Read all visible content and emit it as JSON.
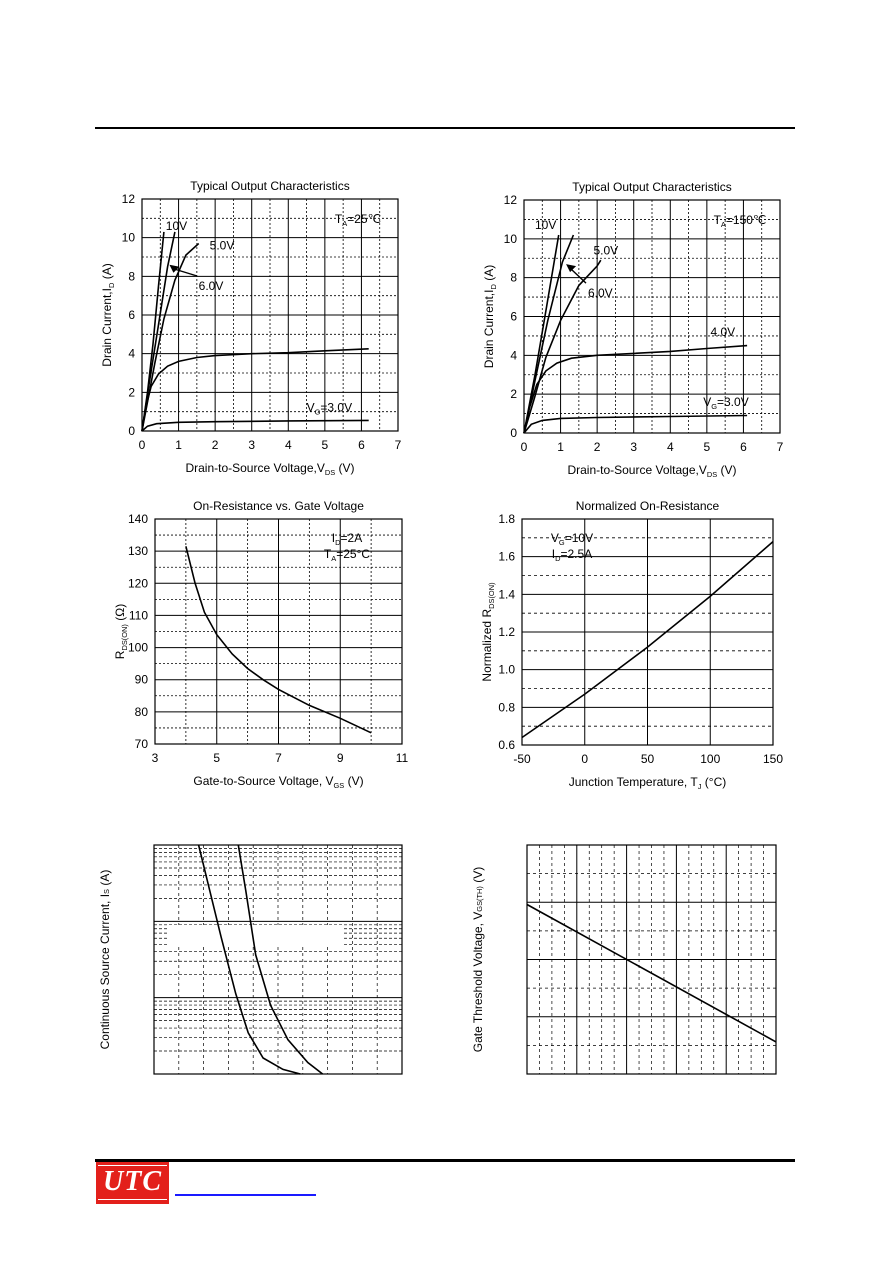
{
  "chart_data": [
    {
      "id": "c1",
      "type": "line",
      "title": "Typical Output Characteristics",
      "xlabel": "Drain-to-Source Voltage,V",
      "xlabel_sub": "DS",
      "xlabel_tail": " (V)",
      "ylabel": "Drain Current,I",
      "ylabel_sub": "D",
      "ylabel_tail": " (A)",
      "xlim": [
        0,
        7
      ],
      "ylim": [
        0,
        12
      ],
      "xticks": [
        "0",
        "1",
        "2",
        "3",
        "4",
        "5",
        "6",
        "7"
      ],
      "yticks": [
        "0",
        "2",
        "4",
        "6",
        "8",
        "10",
        "12"
      ],
      "condition": {
        "main": "T",
        "sub": "A",
        "tail": "=25℃"
      },
      "series": [
        {
          "name": "10V",
          "points": [
            [
              0,
              0
            ],
            [
              0.15,
              2
            ],
            [
              0.3,
              4.5
            ],
            [
              0.45,
              7.5
            ],
            [
              0.6,
              10.3
            ]
          ]
        },
        {
          "name": "6.0V",
          "points": [
            [
              0,
              0
            ],
            [
              0.2,
              2.5
            ],
            [
              0.45,
              5.5
            ],
            [
              0.7,
              8.5
            ],
            [
              0.9,
              10.3
            ]
          ]
        },
        {
          "name": "5.0V",
          "points": [
            [
              0,
              0
            ],
            [
              0.15,
              1.5
            ],
            [
              0.35,
              3.5
            ],
            [
              0.6,
              5.8
            ],
            [
              0.9,
              7.8
            ],
            [
              1.2,
              9.1
            ],
            [
              1.55,
              9.7
            ]
          ]
        },
        {
          "name": "",
          "points": [
            [
              0,
              0
            ],
            [
              0.1,
              1.2
            ],
            [
              0.25,
              2.3
            ],
            [
              0.45,
              2.95
            ],
            [
              0.7,
              3.35
            ],
            [
              1.0,
              3.6
            ],
            [
              1.5,
              3.8
            ],
            [
              2,
              3.9
            ],
            [
              3,
              4.0
            ],
            [
              4,
              4.05
            ],
            [
              5,
              4.15
            ],
            [
              6.2,
              4.25
            ]
          ]
        },
        {
          "name": "V_G=3.0V",
          "points": [
            [
              0,
              0
            ],
            [
              0.15,
              0.25
            ],
            [
              0.4,
              0.38
            ],
            [
              1,
              0.45
            ],
            [
              2,
              0.48
            ],
            [
              4,
              0.52
            ],
            [
              6.2,
              0.55
            ]
          ]
        }
      ],
      "labels": [
        {
          "text": "10V",
          "x": 0.65,
          "y": 10.4
        },
        {
          "text": "5.0V",
          "x": 1.85,
          "y": 9.4
        },
        {
          "text": "6.0V",
          "x": 1.55,
          "y": 7.3
        },
        {
          "text": "V",
          "sub": "G",
          "tail": "=3.0V",
          "x": 4.5,
          "y": 1.0
        }
      ]
    },
    {
      "id": "c2",
      "type": "line",
      "title": "Typical Output Characteristics",
      "xlabel": "Drain-to-Source Voltage,V",
      "xlabel_sub": "DS",
      "xlabel_tail": " (V)",
      "ylabel": "Drain Current,I",
      "ylabel_sub": "D",
      "ylabel_tail": " (A)",
      "xlim": [
        0,
        7
      ],
      "ylim": [
        0,
        12
      ],
      "xticks": [
        "0",
        "1",
        "2",
        "3",
        "4",
        "5",
        "6",
        "7"
      ],
      "yticks": [
        "0",
        "2",
        "4",
        "6",
        "8",
        "10",
        "12"
      ],
      "condition": {
        "main": "T",
        "sub": "A",
        "tail": "=150℃"
      },
      "series": [
        {
          "name": "10V",
          "points": [
            [
              0,
              0
            ],
            [
              0.3,
              3
            ],
            [
              0.6,
              6.3
            ],
            [
              0.95,
              10.2
            ]
          ]
        },
        {
          "name": "6.0V",
          "points": [
            [
              0,
              0
            ],
            [
              0.3,
              2.7
            ],
            [
              0.65,
              5.8
            ],
            [
              1.05,
              8.8
            ],
            [
              1.35,
              10.2
            ]
          ]
        },
        {
          "name": "5.0V",
          "points": [
            [
              0,
              0
            ],
            [
              0.3,
              1.9
            ],
            [
              0.6,
              3.9
            ],
            [
              1.0,
              5.8
            ],
            [
              1.5,
              7.6
            ],
            [
              2.0,
              8.6
            ],
            [
              2.1,
              8.9
            ]
          ]
        },
        {
          "name": "4.0V",
          "points": [
            [
              0,
              0
            ],
            [
              0.15,
              1.3
            ],
            [
              0.35,
              2.5
            ],
            [
              0.6,
              3.2
            ],
            [
              0.9,
              3.6
            ],
            [
              1.3,
              3.85
            ],
            [
              2,
              4.0
            ],
            [
              3,
              4.1
            ],
            [
              4,
              4.2
            ],
            [
              5,
              4.35
            ],
            [
              6.1,
              4.5
            ]
          ]
        },
        {
          "name": "V_G=3.0V",
          "points": [
            [
              0,
              0
            ],
            [
              0.2,
              0.45
            ],
            [
              0.5,
              0.65
            ],
            [
              1,
              0.75
            ],
            [
              2,
              0.8
            ],
            [
              4,
              0.85
            ],
            [
              6.1,
              0.9
            ]
          ]
        }
      ],
      "labels": [
        {
          "text": "10V",
          "x": 0.3,
          "y": 10.5
        },
        {
          "text": "5.0V",
          "x": 1.9,
          "y": 9.2
        },
        {
          "text": "6.0V",
          "x": 1.75,
          "y": 7.0
        },
        {
          "text": "4.0V",
          "x": 5.1,
          "y": 5.0
        },
        {
          "text": "V",
          "sub": "G",
          "tail": "=3.0V",
          "x": 4.9,
          "y": 1.4
        }
      ]
    },
    {
      "id": "c3",
      "type": "line",
      "title": "On-Resistance vs. Gate Voltage",
      "xlabel": "Gate-to-Source Voltage, V",
      "xlabel_sub": "GS",
      "xlabel_tail": " (V)",
      "ylabel": "R",
      "ylabel_sub": "DS(ON)",
      "ylabel_tail": " (Ω)",
      "xlim": [
        3,
        11
      ],
      "ylim": [
        70,
        140
      ],
      "xticks": [
        "3",
        "5",
        "7",
        "9",
        "11"
      ],
      "yticks": [
        "70",
        "80",
        "90",
        "100",
        "110",
        "120",
        "130",
        "140"
      ],
      "condition_lines": [
        {
          "main": "I",
          "sub": "D",
          "tail": "=2A"
        },
        {
          "main": "T",
          "sub": "A",
          "tail": "=25°C"
        }
      ],
      "series": [
        {
          "name": "",
          "points": [
            [
              4,
              131.5
            ],
            [
              4.3,
              120
            ],
            [
              4.6,
              111
            ],
            [
              5,
              104
            ],
            [
              5.5,
              98
            ],
            [
              6,
              93.5
            ],
            [
              6.5,
              90
            ],
            [
              7,
              87
            ],
            [
              8,
              82
            ],
            [
              9,
              78
            ],
            [
              10,
              73.5
            ]
          ]
        }
      ]
    },
    {
      "id": "c4",
      "type": "line",
      "title": "Normalized On-Resistance",
      "xlabel": "Junction Temperature, T",
      "xlabel_sub": "J",
      "xlabel_tail": " (°C)",
      "ylabel": "Normalized R",
      "ylabel_sub": "DS(ON)",
      "ylabel_tail": "",
      "xlim": [
        -50,
        150
      ],
      "ylim": [
        0.6,
        1.8
      ],
      "xticks": [
        "-50",
        "0",
        "50",
        "100",
        "150"
      ],
      "yticks": [
        "0.6",
        "0.8",
        "1.0",
        "1.2",
        "1.4",
        "1.6",
        "1.8"
      ],
      "condition_lines": [
        {
          "main": "V",
          "sub": "G",
          "tail": "=10V"
        },
        {
          "main": "I",
          "sub": "D",
          "tail": "=2.5A"
        }
      ],
      "series": [
        {
          "name": "",
          "points": [
            [
              -50,
              0.64
            ],
            [
              0,
              0.87
            ],
            [
              50,
              1.12
            ],
            [
              100,
              1.39
            ],
            [
              150,
              1.68
            ]
          ]
        }
      ]
    },
    {
      "id": "c5",
      "type": "line",
      "title": "",
      "ylabel": "Continuous Source Current, I",
      "ylabel_sub": "S",
      "ylabel_tail": " (A)",
      "series": [
        {
          "name": "",
          "points": [
            [
              0.18,
              1.0
            ],
            [
              0.27,
              0.6
            ],
            [
              0.33,
              0.35
            ],
            [
              0.38,
              0.18
            ],
            [
              0.44,
              0.07
            ],
            [
              0.52,
              0.02
            ],
            [
              0.59,
              0.0
            ]
          ]
        },
        {
          "name": "",
          "points": [
            [
              0.34,
              1.0
            ],
            [
              0.37,
              0.8
            ],
            [
              0.41,
              0.52
            ],
            [
              0.47,
              0.3
            ],
            [
              0.54,
              0.15
            ],
            [
              0.62,
              0.05
            ],
            [
              0.68,
              0.0
            ]
          ]
        }
      ]
    },
    {
      "id": "c6",
      "type": "line",
      "title": "",
      "ylabel": "Gate Threshold Voltage, V",
      "ylabel_sub": "GS(TH)",
      "ylabel_tail": " (V)",
      "series": [
        {
          "name": "",
          "points": [
            [
              0,
              0.26
            ],
            [
              1,
              0.86
            ]
          ]
        }
      ]
    }
  ]
}
